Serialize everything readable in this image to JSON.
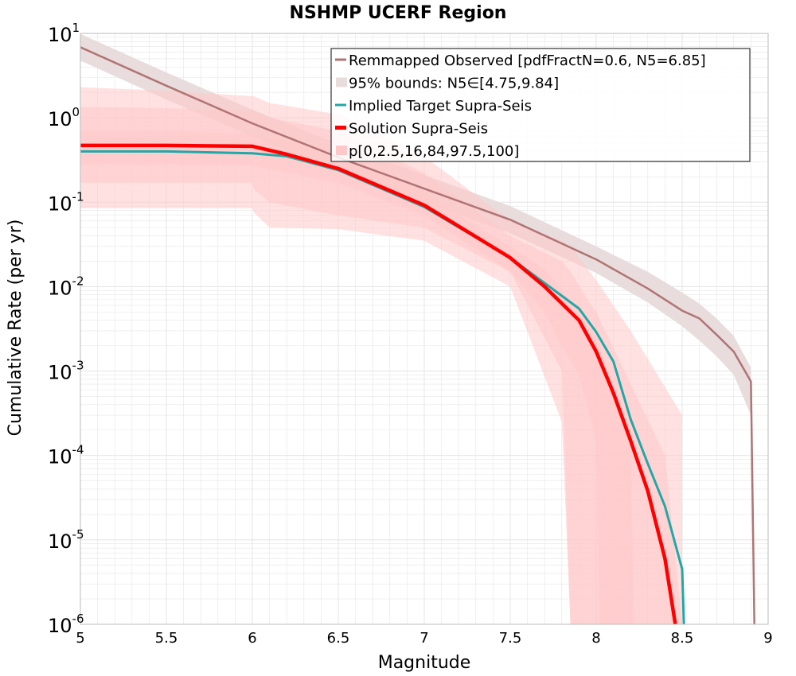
{
  "chart_data": {
    "type": "line",
    "title": "NSHMP UCERF Region",
    "xlabel": "Magnitude",
    "ylabel": "Cumulative Rate (per yr)",
    "x_scale": "linear",
    "y_scale": "log",
    "xlim": [
      5,
      9
    ],
    "ylim": [
      1e-06,
      10
    ],
    "x_ticks": [
      5,
      5.5,
      6,
      6.5,
      7,
      7.5,
      8,
      8.5,
      9
    ],
    "x_tick_labels": [
      "5",
      "5.5",
      "6",
      "6.5",
      "7",
      "7.5",
      "8",
      "8.5",
      "9"
    ],
    "y_ticks": [
      {
        "value": 1e-06,
        "base": "10",
        "exp": "-6"
      },
      {
        "value": 1e-05,
        "base": "10",
        "exp": "-5"
      },
      {
        "value": 0.0001,
        "base": "10",
        "exp": "-4"
      },
      {
        "value": 0.001,
        "base": "10",
        "exp": "-3"
      },
      {
        "value": 0.01,
        "base": "10",
        "exp": "-2"
      },
      {
        "value": 0.1,
        "base": "10",
        "exp": "-1"
      },
      {
        "value": 1,
        "base": "10",
        "exp": "0"
      },
      {
        "value": 10,
        "base": "10",
        "exp": "1"
      }
    ],
    "grid": true,
    "legend_position": "top-right",
    "legend": [
      {
        "label": "Remmapped Observed [pdfFractN=0.6, N5=6.85]",
        "kind": "line",
        "color": "#b07474"
      },
      {
        "label": "95% bounds: N5∈[4.75,9.84]",
        "kind": "band",
        "color": "#e8dcdc"
      },
      {
        "label": "Implied Target Supra-Seis",
        "kind": "line",
        "color": "#20a8a8"
      },
      {
        "label": "Solution Supra-Seis",
        "kind": "line-thick",
        "color": "#ff0000"
      },
      {
        "label": "p[0,2.5,16,84,97.5,100]",
        "kind": "band",
        "color": "#ffc8c8"
      }
    ],
    "series": [
      {
        "name": "Remmapped Observed [pdfFractN=0.6, N5=6.85]",
        "color": "#b07474",
        "x": [
          5,
          5.5,
          6,
          6.5,
          7,
          7.5,
          8,
          8.3,
          8.5,
          8.6,
          8.7,
          8.8,
          8.9,
          8.92
        ],
        "y": [
          6.85,
          2.4,
          0.86,
          0.34,
          0.145,
          0.062,
          0.021,
          0.0095,
          0.0052,
          0.0042,
          0.0027,
          0.0017,
          0.00075,
          1e-06
        ]
      },
      {
        "name": "Implied Target Supra-Seis",
        "color": "#20a8a8",
        "x": [
          5,
          5.5,
          6,
          6.2,
          6.5,
          7,
          7.5,
          7.7,
          7.9,
          8,
          8.1,
          8.2,
          8.3,
          8.4,
          8.5,
          8.51
        ],
        "y": [
          0.4,
          0.4,
          0.38,
          0.35,
          0.24,
          0.088,
          0.022,
          0.011,
          0.0055,
          0.0029,
          0.0013,
          0.00027,
          8e-05,
          2.5e-05,
          4.5e-06,
          1e-06
        ]
      },
      {
        "name": "Solution Supra-Seis",
        "color": "#ff0000",
        "x": [
          5,
          5.5,
          6,
          6.2,
          6.5,
          7,
          7.5,
          7.7,
          7.9,
          8,
          8.1,
          8.2,
          8.3,
          8.4,
          8.46
        ],
        "y": [
          0.47,
          0.47,
          0.46,
          0.37,
          0.25,
          0.092,
          0.022,
          0.01,
          0.004,
          0.0017,
          0.00055,
          0.00015,
          3.8e-05,
          6e-06,
          1e-06
        ]
      }
    ],
    "bands": [
      {
        "name": "95% bounds: N5∈[4.75,9.84]",
        "color": "#e8dcdc",
        "x": [
          5,
          5.5,
          6,
          6.5,
          7,
          7.5,
          8,
          8.3,
          8.5,
          8.6,
          8.7,
          8.8,
          8.9,
          8.92
        ],
        "lower": [
          4.75,
          1.65,
          0.6,
          0.235,
          0.1,
          0.043,
          0.0145,
          0.0065,
          0.0034,
          0.0023,
          0.0015,
          0.0009,
          0.0003,
          1e-06
        ],
        "upper": [
          9.84,
          3.45,
          1.25,
          0.49,
          0.21,
          0.09,
          0.03,
          0.015,
          0.0085,
          0.0063,
          0.0042,
          0.0026,
          0.0011,
          1e-06
        ]
      },
      {
        "name": "p0-p100",
        "color": "#ffc8c8",
        "opacity": 0.55,
        "x": [
          5,
          5.5,
          6,
          6.01,
          6.1,
          6.5,
          7,
          7.5,
          7.8,
          7.85,
          8,
          8.2,
          8.5
        ],
        "lower": [
          0.085,
          0.085,
          0.085,
          0.075,
          0.05,
          0.048,
          0.035,
          0.01,
          0.00025,
          1e-06,
          1e-06,
          1e-06,
          1e-06
        ],
        "upper": [
          2.3,
          2.1,
          1.8,
          1.8,
          1.5,
          1.1,
          0.35,
          0.06,
          0.035,
          0.03,
          0.012,
          0.003,
          0.0003
        ]
      },
      {
        "name": "p2.5-p97.5",
        "color": "#ffc8c8",
        "opacity": 0.55,
        "x": [
          5,
          5.5,
          6,
          6.01,
          6.1,
          6.5,
          7,
          7.5,
          7.8,
          7.85,
          7.95,
          8,
          8.2,
          8.4,
          8.5
        ],
        "lower": [
          0.17,
          0.17,
          0.17,
          0.14,
          0.1,
          0.07,
          0.05,
          0.015,
          0.001,
          1e-06,
          1e-06,
          1e-06,
          1e-06,
          1e-06,
          1e-06
        ],
        "upper": [
          1.35,
          1.3,
          1.2,
          1.2,
          1.0,
          0.7,
          0.22,
          0.04,
          0.02,
          0.015,
          0.007,
          0.005,
          0.0007,
          0.0001,
          1e-06
        ]
      },
      {
        "name": "p16-p84",
        "color": "#ffc8c8",
        "opacity": 0.55,
        "x": [
          5,
          5.5,
          6,
          6.5,
          7,
          7.5,
          7.7,
          7.8,
          7.9,
          8,
          8.02,
          8.2,
          8.22
        ],
        "lower": [
          0.28,
          0.28,
          0.27,
          0.17,
          0.07,
          0.015,
          0.005,
          0.002,
          0.0009,
          0.00015,
          1e-06,
          1e-06,
          1e-06
        ],
        "upper": [
          0.7,
          0.7,
          0.65,
          0.4,
          0.13,
          0.03,
          0.016,
          0.009,
          0.005,
          0.0025,
          0.002,
          0.00016,
          1e-06
        ]
      }
    ],
    "colors": {
      "grid": "#e6e6e6",
      "frame": "#bbbbbb",
      "legend_border": "#333333"
    }
  }
}
